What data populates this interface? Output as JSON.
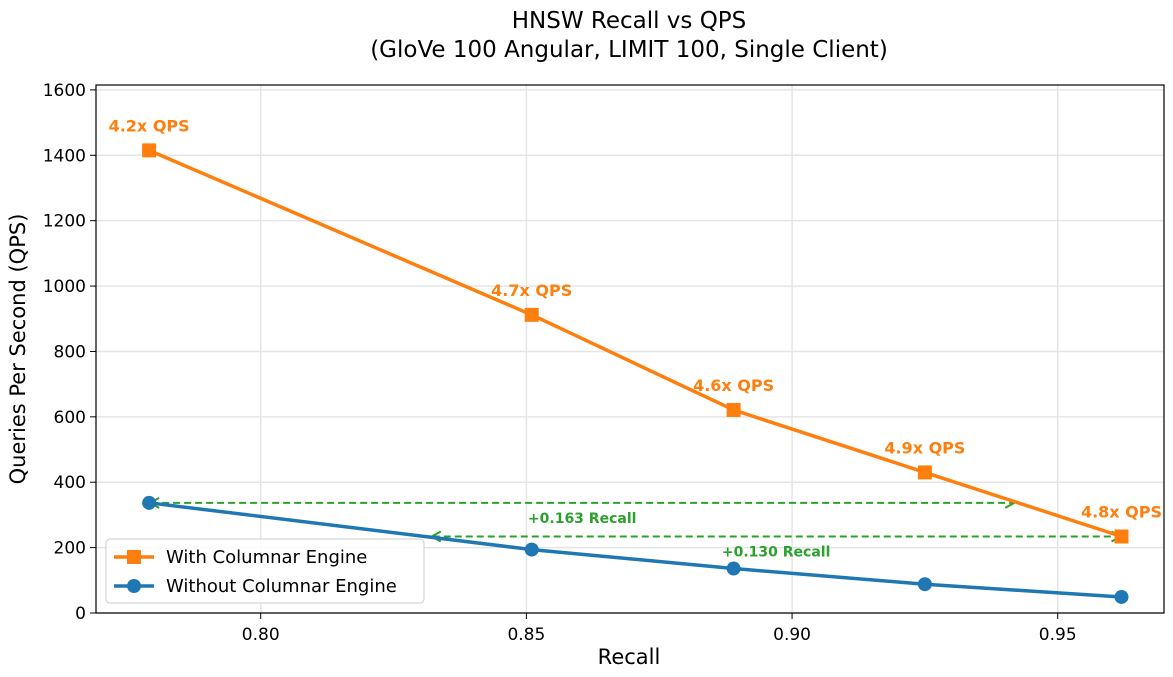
{
  "chart_data": {
    "type": "line",
    "title": "HNSW Recall vs QPS",
    "subtitle": "(GloVe 100 Angular, LIMIT 100, Single Client)",
    "xlabel": "Recall",
    "ylabel": "Queries Per Second (QPS)",
    "xlim": [
      0.769,
      0.97
    ],
    "ylim": [
      0,
      1615
    ],
    "xticks": [
      0.8,
      0.85,
      0.9,
      0.95
    ],
    "xtick_labels": [
      "0.80",
      "0.85",
      "0.90",
      "0.95"
    ],
    "yticks": [
      0,
      200,
      400,
      600,
      800,
      1000,
      1200,
      1400,
      1600
    ],
    "ytick_labels": [
      "0",
      "200",
      "400",
      "600",
      "800",
      "1000",
      "1200",
      "1400",
      "1600"
    ],
    "grid": true,
    "legend_position": "lower-left",
    "series": [
      {
        "name": "With Columnar Engine",
        "color": "#ff7f0e",
        "marker": "square",
        "points": [
          {
            "x": 0.779,
            "y": 1415
          },
          {
            "x": 0.851,
            "y": 912
          },
          {
            "x": 0.889,
            "y": 621
          },
          {
            "x": 0.925,
            "y": 430
          },
          {
            "x": 0.962,
            "y": 234
          }
        ],
        "point_labels": [
          "4.2x QPS",
          "4.7x QPS",
          "4.6x QPS",
          "4.9x QPS",
          "4.8x QPS"
        ]
      },
      {
        "name": "Without Columnar Engine",
        "color": "#1f77b4",
        "marker": "circle",
        "points": [
          {
            "x": 0.779,
            "y": 337
          },
          {
            "x": 0.851,
            "y": 194
          },
          {
            "x": 0.889,
            "y": 136
          },
          {
            "x": 0.925,
            "y": 88
          },
          {
            "x": 0.962,
            "y": 49
          }
        ]
      }
    ],
    "annotations": [
      {
        "label": "+0.163 Recall",
        "color": "#2ca02c",
        "y": 337,
        "x_from": 0.779,
        "x_to": 0.942
      },
      {
        "label": "+0.130 Recall",
        "color": "#2ca02c",
        "y": 234,
        "x_from": 0.832,
        "x_to": 0.962
      }
    ]
  }
}
